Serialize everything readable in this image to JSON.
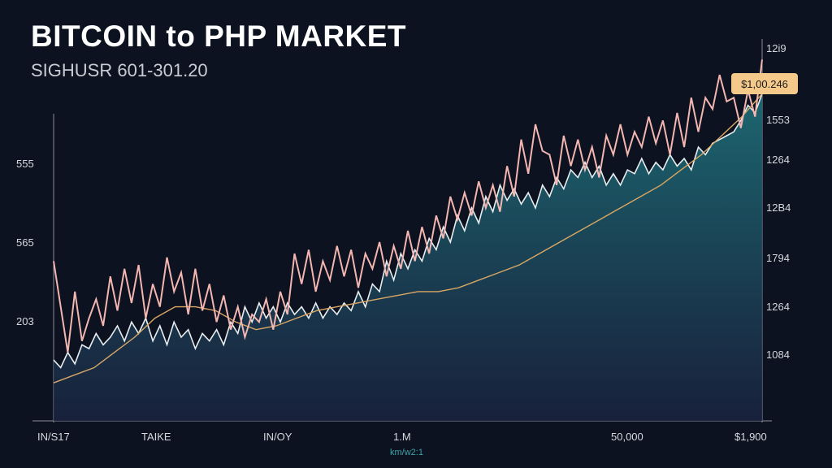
{
  "chart_data": {
    "type": "area",
    "title": "BITCOIN to PHP MARKET",
    "subtitle": "SIGHUSR 601-301.20",
    "price_tag": "$1,00.246",
    "left_ticks": [
      "555",
      "565",
      "203"
    ],
    "right_ticks": [
      "12i9",
      "1553",
      "1264",
      "12B4",
      "1794",
      "1264",
      "1084"
    ],
    "x_ticks": [
      "IN/S17",
      "TAIKE",
      "IN/OY",
      "1.M",
      "50,000",
      "$1,900"
    ],
    "x_sublabel": "km/w2:1",
    "colors": {
      "price_line": "#f3b6b0",
      "area_line": "#e8eef0",
      "moving_avg": "#d9a764",
      "area_top": "#1d6b74",
      "area_bottom": "#1a2340",
      "price_tag": "#f4c98a"
    },
    "series": [
      {
        "values": [
          0.58,
          0.7,
          0.82,
          0.66,
          0.79,
          0.73,
          0.68,
          0.75,
          0.62,
          0.71,
          0.6,
          0.69,
          0.59,
          0.73,
          0.64,
          0.7,
          0.57,
          0.66,
          0.61,
          0.72,
          0.6,
          0.71,
          0.64,
          0.74,
          0.67,
          0.76,
          0.7,
          0.78,
          0.72,
          0.74,
          0.68,
          0.76,
          0.66,
          0.72,
          0.56,
          0.64,
          0.55,
          0.66,
          0.58,
          0.63,
          0.54,
          0.62,
          0.55,
          0.65,
          0.56,
          0.6,
          0.53,
          0.62,
          0.54,
          0.6,
          0.5,
          0.58,
          0.49,
          0.56,
          0.46,
          0.52,
          0.41,
          0.47,
          0.4,
          0.46,
          0.37,
          0.44,
          0.38,
          0.45,
          0.33,
          0.41,
          0.26,
          0.35,
          0.22,
          0.29,
          0.3,
          0.38,
          0.25,
          0.33,
          0.26,
          0.34,
          0.28,
          0.36,
          0.25,
          0.3,
          0.22,
          0.3,
          0.24,
          0.28,
          0.2,
          0.27,
          0.21,
          0.3,
          0.19,
          0.28,
          0.15,
          0.24,
          0.15,
          0.18,
          0.09,
          0.16,
          0.15,
          0.23,
          0.13,
          0.2,
          0.05
        ]
      },
      {
        "values": [
          0.84,
          0.86,
          0.82,
          0.85,
          0.8,
          0.81,
          0.77,
          0.8,
          0.78,
          0.75,
          0.79,
          0.74,
          0.77,
          0.73,
          0.79,
          0.75,
          0.8,
          0.74,
          0.78,
          0.76,
          0.81,
          0.77,
          0.79,
          0.76,
          0.8,
          0.74,
          0.77,
          0.7,
          0.74,
          0.69,
          0.73,
          0.7,
          0.74,
          0.69,
          0.72,
          0.7,
          0.73,
          0.69,
          0.73,
          0.7,
          0.72,
          0.69,
          0.71,
          0.66,
          0.7,
          0.64,
          0.66,
          0.58,
          0.63,
          0.56,
          0.6,
          0.55,
          0.58,
          0.52,
          0.55,
          0.49,
          0.53,
          0.46,
          0.5,
          0.44,
          0.48,
          0.41,
          0.45,
          0.38,
          0.42,
          0.39,
          0.43,
          0.4,
          0.44,
          0.38,
          0.41,
          0.36,
          0.39,
          0.34,
          0.36,
          0.32,
          0.36,
          0.33,
          0.38,
          0.35,
          0.38,
          0.34,
          0.35,
          0.31,
          0.35,
          0.32,
          0.34,
          0.3,
          0.33,
          0.31,
          0.34,
          0.28,
          0.3,
          0.27,
          0.26,
          0.25,
          0.24,
          0.21,
          0.17,
          0.19,
          0.14
        ]
      },
      {
        "values": [
          0.9,
          0.88,
          0.86,
          0.82,
          0.78,
          0.73,
          0.7,
          0.7,
          0.71,
          0.74,
          0.76,
          0.75,
          0.73,
          0.71,
          0.7,
          0.69,
          0.68,
          0.67,
          0.66,
          0.66,
          0.65,
          0.63,
          0.61,
          0.59,
          0.56,
          0.53,
          0.5,
          0.47,
          0.44,
          0.41,
          0.38,
          0.34,
          0.3,
          0.25,
          0.2,
          0.14
        ]
      }
    ]
  }
}
